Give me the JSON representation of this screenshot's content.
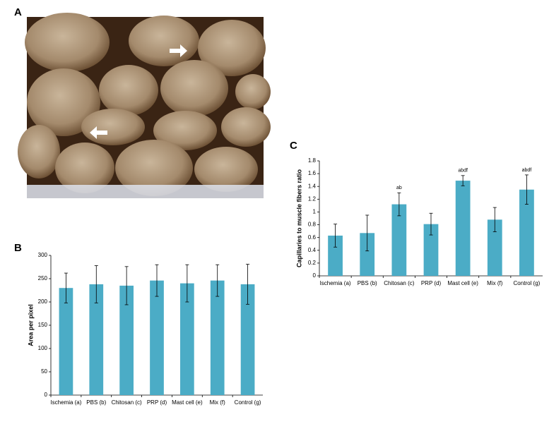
{
  "figure_labels": [
    "A",
    "B",
    "C"
  ],
  "chart_data": [
    {
      "type": "bar",
      "y_label": "Area per pixel",
      "categories": [
        "Ischemia (a)",
        "PBS (b)",
        "Chitosan (c)",
        "PRP (d)",
        "Mast cell (e)",
        "Mix (f)",
        "Control (g)"
      ],
      "values": [
        230,
        238,
        235,
        246,
        240,
        246,
        238
      ],
      "errors": [
        32,
        40,
        41,
        34,
        40,
        34,
        43
      ],
      "color": "#4bacc6",
      "ylim": [
        0,
        300
      ],
      "yticks": [
        0,
        50,
        100,
        150,
        200,
        250,
        300
      ]
    },
    {
      "type": "bar",
      "y_label": "Capillaries to muscle fibers ratio",
      "categories": [
        "Ischemia (a)",
        "PBS (b)",
        "Chitosan (c)",
        "PRP (d)",
        "Mast cell (e)",
        "Mix (f)",
        "Control (g)"
      ],
      "values": [
        0.63,
        0.67,
        1.12,
        0.81,
        1.49,
        0.88,
        1.35
      ],
      "errors": [
        0.18,
        0.28,
        0.18,
        0.17,
        0.08,
        0.19,
        0.23
      ],
      "annotations": [
        null,
        null,
        "ab",
        null,
        "abdf",
        null,
        "abdf"
      ],
      "color": "#4bacc6",
      "ylim": [
        0,
        1.8
      ],
      "yticks": [
        0,
        0.2,
        0.4,
        0.6,
        0.8,
        1,
        1.2,
        1.4,
        1.6,
        1.8
      ]
    }
  ]
}
